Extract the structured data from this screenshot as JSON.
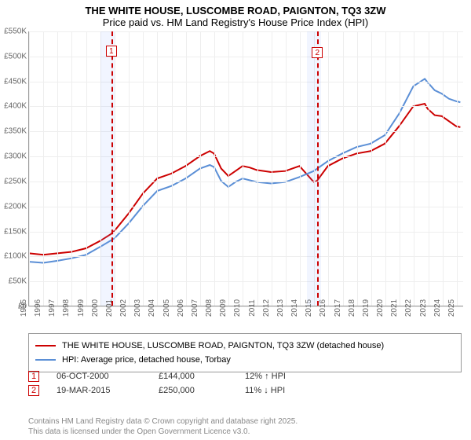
{
  "title_line1": "THE WHITE HOUSE, LUSCOMBE ROAD, PAIGNTON, TQ3 3ZW",
  "title_line2": "Price paid vs. HM Land Registry's House Price Index (HPI)",
  "chart": {
    "type": "line",
    "x_start": 1995,
    "x_end": 2025.5,
    "ylim": [
      0,
      550
    ],
    "ytick_step": 50,
    "y_prefix": "£",
    "y_suffix": "K",
    "background_color": "#ffffff",
    "grid_color": "#eeeeee",
    "axis_color": "#999999",
    "shade_color": "rgba(120,160,255,0.10)",
    "marker_color": "#cc0000",
    "x_years": [
      1995,
      1996,
      1997,
      1998,
      1999,
      2000,
      2001,
      2002,
      2003,
      2004,
      2005,
      2006,
      2007,
      2008,
      2009,
      2010,
      2011,
      2012,
      2013,
      2014,
      2015,
      2016,
      2017,
      2018,
      2019,
      2020,
      2021,
      2022,
      2023,
      2024,
      2025
    ],
    "shaded_ranges": [
      [
        2000.0,
        2001.0
      ],
      [
        2014.5,
        2015.5
      ]
    ],
    "markers": [
      {
        "label": "1",
        "x": 2000.77
      },
      {
        "label": "2",
        "x": 2015.22
      }
    ],
    "series": [
      {
        "name": "THE WHITE HOUSE, LUSCOMBE ROAD, PAIGNTON, TQ3 3ZW (detached house)",
        "color": "#cc0000",
        "width": 2,
        "points": [
          [
            1995.0,
            105
          ],
          [
            1996.0,
            102
          ],
          [
            1997.0,
            105
          ],
          [
            1998.0,
            108
          ],
          [
            1999.0,
            115
          ],
          [
            2000.0,
            130
          ],
          [
            2000.77,
            144
          ],
          [
            2001.0,
            150
          ],
          [
            2002.0,
            185
          ],
          [
            2003.0,
            225
          ],
          [
            2004.0,
            255
          ],
          [
            2005.0,
            265
          ],
          [
            2006.0,
            280
          ],
          [
            2007.0,
            300
          ],
          [
            2007.7,
            310
          ],
          [
            2008.0,
            305
          ],
          [
            2008.5,
            275
          ],
          [
            2009.0,
            260
          ],
          [
            2009.5,
            270
          ],
          [
            2010.0,
            280
          ],
          [
            2010.5,
            277
          ],
          [
            2011.0,
            272
          ],
          [
            2012.0,
            268
          ],
          [
            2013.0,
            270
          ],
          [
            2014.0,
            280
          ],
          [
            2015.0,
            248
          ],
          [
            2015.22,
            250
          ],
          [
            2016.0,
            280
          ],
          [
            2017.0,
            295
          ],
          [
            2018.0,
            305
          ],
          [
            2019.0,
            310
          ],
          [
            2020.0,
            325
          ],
          [
            2021.0,
            360
          ],
          [
            2022.0,
            400
          ],
          [
            2022.8,
            405
          ],
          [
            2023.0,
            395
          ],
          [
            2023.5,
            382
          ],
          [
            2024.0,
            380
          ],
          [
            2024.5,
            370
          ],
          [
            2025.0,
            360
          ],
          [
            2025.3,
            358
          ]
        ]
      },
      {
        "name": "HPI: Average price, detached house, Torbay",
        "color": "#5b8fd6",
        "width": 2,
        "points": [
          [
            1995.0,
            88
          ],
          [
            1996.0,
            86
          ],
          [
            1997.0,
            90
          ],
          [
            1998.0,
            95
          ],
          [
            1999.0,
            102
          ],
          [
            2000.0,
            118
          ],
          [
            2001.0,
            135
          ],
          [
            2002.0,
            165
          ],
          [
            2003.0,
            200
          ],
          [
            2004.0,
            230
          ],
          [
            2005.0,
            240
          ],
          [
            2006.0,
            255
          ],
          [
            2007.0,
            275
          ],
          [
            2007.7,
            282
          ],
          [
            2008.0,
            278
          ],
          [
            2008.5,
            250
          ],
          [
            2009.0,
            238
          ],
          [
            2009.5,
            248
          ],
          [
            2010.0,
            255
          ],
          [
            2011.0,
            248
          ],
          [
            2012.0,
            245
          ],
          [
            2013.0,
            248
          ],
          [
            2014.0,
            258
          ],
          [
            2015.0,
            270
          ],
          [
            2016.0,
            290
          ],
          [
            2017.0,
            305
          ],
          [
            2018.0,
            318
          ],
          [
            2019.0,
            325
          ],
          [
            2020.0,
            342
          ],
          [
            2021.0,
            385
          ],
          [
            2022.0,
            440
          ],
          [
            2022.8,
            455
          ],
          [
            2023.0,
            448
          ],
          [
            2023.5,
            432
          ],
          [
            2024.0,
            425
          ],
          [
            2024.5,
            415
          ],
          [
            2025.0,
            410
          ],
          [
            2025.3,
            408
          ]
        ]
      }
    ]
  },
  "legend": {
    "series0": "THE WHITE HOUSE, LUSCOMBE ROAD, PAIGNTON, TQ3 3ZW (detached house)",
    "series1": "HPI: Average price, detached house, Torbay"
  },
  "transactions": [
    {
      "n": "1",
      "date": "06-OCT-2000",
      "price": "£144,000",
      "hpi": "12% ↑ HPI"
    },
    {
      "n": "2",
      "date": "19-MAR-2015",
      "price": "£250,000",
      "hpi": "11% ↓ HPI"
    }
  ],
  "footer1": "Contains HM Land Registry data © Crown copyright and database right 2025.",
  "footer2": "This data is licensed under the Open Government Licence v3.0."
}
